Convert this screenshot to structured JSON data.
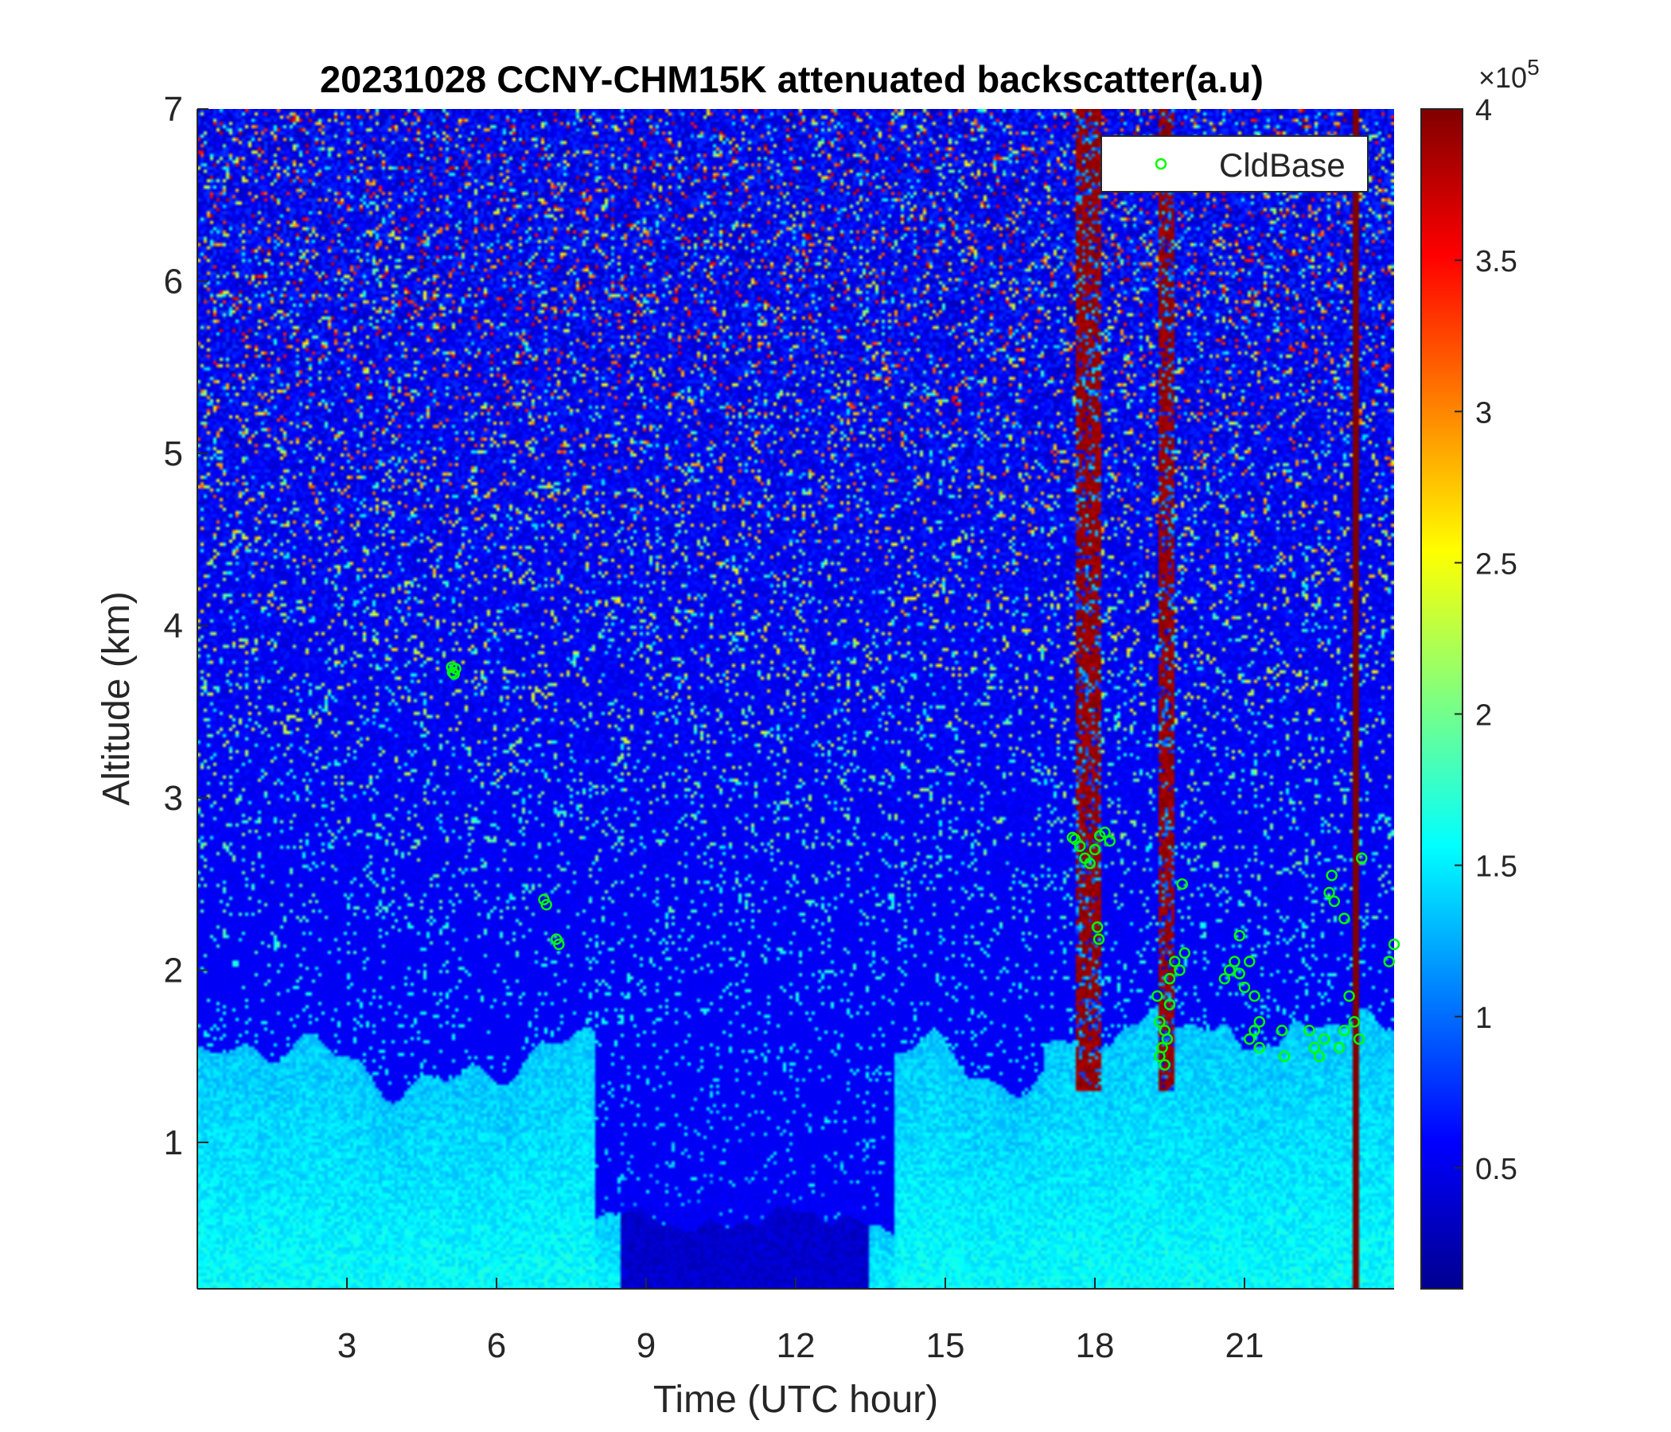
{
  "chart_data": {
    "type": "heatmap",
    "title": "20231028 CCNY-CHM15K attenuated backscatter(a.u)",
    "xlabel": "Time (UTC hour)",
    "ylabel": "Altitude (km)",
    "xlim": [
      0,
      24
    ],
    "ylim": [
      0.15,
      7
    ],
    "xticks": [
      3,
      6,
      9,
      12,
      15,
      18,
      21
    ],
    "xtick_labels": [
      "3",
      "6",
      "9",
      "12",
      "15",
      "18",
      "21"
    ],
    "yticks": [
      1,
      2,
      3,
      4,
      5,
      6,
      7
    ],
    "ytick_labels": [
      "1",
      "2",
      "3",
      "4",
      "5",
      "6",
      "7"
    ],
    "colorbar": {
      "colormap": "jet",
      "clim": [
        0.1,
        4.0
      ],
      "ticks": [
        0.5,
        1,
        1.5,
        2,
        2.5,
        3,
        3.5,
        4
      ],
      "tick_labels": [
        "0.5",
        "1",
        "1.5",
        "2",
        "2.5",
        "3",
        "3.5",
        "4"
      ],
      "exponent_prefix": "×10",
      "exponent_power": "5"
    },
    "legend": {
      "placement": "top-right",
      "entries": [
        {
          "label": "CldBase",
          "marker": "circle",
          "color": "#00ff00"
        }
      ]
    },
    "heatmap_description_values": {
      "noise_background_level": 0.55,
      "boundary_layer_level": 1.35,
      "strong_precip_columns_hours": [
        [
          17.6,
          18.1
        ],
        [
          19.3,
          19.6
        ],
        [
          23.15,
          23.3
        ]
      ]
    },
    "series": [
      {
        "name": "CldBase",
        "type": "scatter",
        "x": [
          5.1,
          5.12,
          5.15,
          5.18,
          6.95,
          7.0,
          7.2,
          7.25,
          17.55,
          17.6,
          17.7,
          17.8,
          17.9,
          18.0,
          18.1,
          18.2,
          18.3,
          18.05,
          18.08,
          19.25,
          19.3,
          19.35,
          19.4,
          19.45,
          19.5,
          19.6,
          19.7,
          19.8,
          19.75,
          19.3,
          19.4,
          19.5,
          20.6,
          20.7,
          20.8,
          20.9,
          21.0,
          21.1,
          21.2,
          21.3,
          21.1,
          21.2,
          21.3,
          20.9,
          21.75,
          21.8,
          22.3,
          22.4,
          22.5,
          22.6,
          22.7,
          22.75,
          22.8,
          22.9,
          23.0,
          23.1,
          23.2,
          23.3,
          23.35,
          23.9,
          24.0,
          23.0
        ],
        "y": [
          3.76,
          3.73,
          3.72,
          3.75,
          2.41,
          2.38,
          2.18,
          2.15,
          2.77,
          2.76,
          2.72,
          2.65,
          2.62,
          2.7,
          2.78,
          2.8,
          2.75,
          2.25,
          2.18,
          1.85,
          1.7,
          1.55,
          1.45,
          1.6,
          1.95,
          2.05,
          2.0,
          2.1,
          2.5,
          1.5,
          1.65,
          1.8,
          1.95,
          2.0,
          2.05,
          1.98,
          1.9,
          2.05,
          1.85,
          1.7,
          1.6,
          1.65,
          1.55,
          2.2,
          1.65,
          1.5,
          1.65,
          1.55,
          1.5,
          1.6,
          2.45,
          2.55,
          2.4,
          1.55,
          1.65,
          1.85,
          1.7,
          1.6,
          2.65,
          2.05,
          2.15,
          2.3
        ]
      }
    ]
  }
}
